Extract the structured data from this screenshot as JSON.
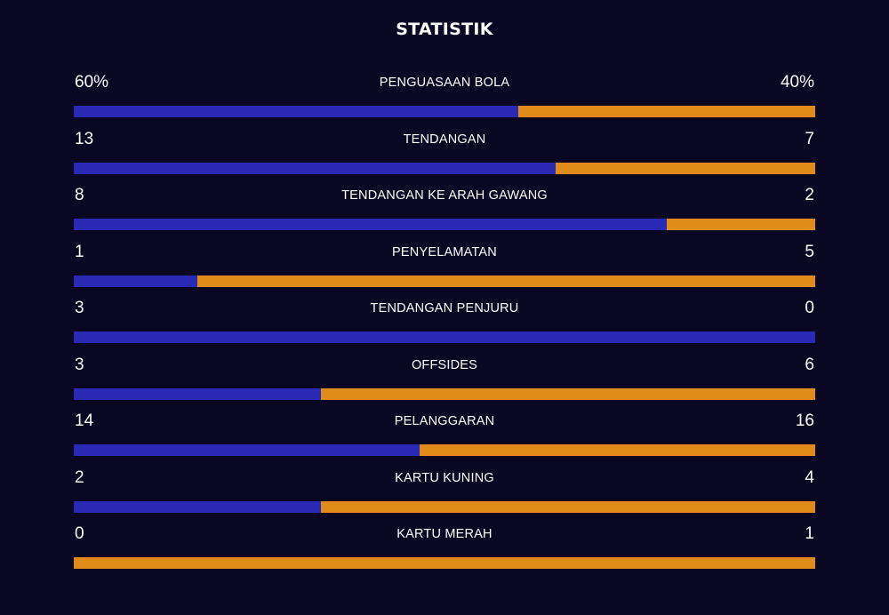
{
  "title": "STATISTIK",
  "colors": {
    "background": "#0a0722",
    "home": "#2a29b6",
    "away": "#e08c1a"
  },
  "stats": [
    {
      "label": "PENGUASAAN BOLA",
      "home": "60%",
      "away": "40%",
      "home_share": 0.6
    },
    {
      "label": "TENDANGAN",
      "home": "13",
      "away": "7",
      "home_share": 0.65
    },
    {
      "label": "TENDANGAN KE ARAH GAWANG",
      "home": "8",
      "away": "2",
      "home_share": 0.8
    },
    {
      "label": "PENYELAMATAN",
      "home": "1",
      "away": "5",
      "home_share": 0.1667
    },
    {
      "label": "TENDANGAN PENJURU",
      "home": "3",
      "away": "0",
      "home_share": 1.0
    },
    {
      "label": "OFFSIDES",
      "home": "3",
      "away": "6",
      "home_share": 0.3333
    },
    {
      "label": "PELANGGARAN",
      "home": "14",
      "away": "16",
      "home_share": 0.4667
    },
    {
      "label": "KARTU KUNING",
      "home": "2",
      "away": "4",
      "home_share": 0.3333
    },
    {
      "label": "KARTU MERAH",
      "home": "0",
      "away": "1",
      "home_share": 0.0
    }
  ]
}
